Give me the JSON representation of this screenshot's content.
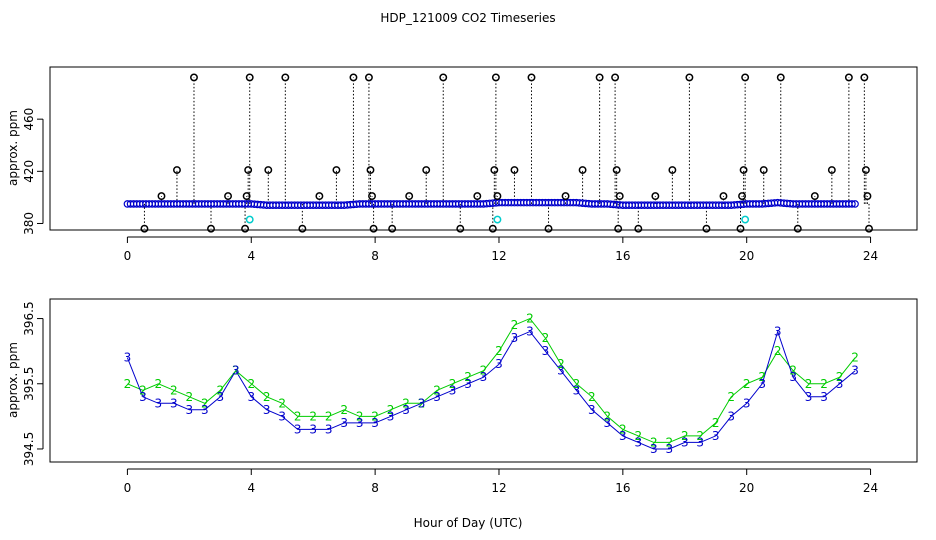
{
  "figure": {
    "title": "HDP_121009  CO2 Timeseries",
    "xlabel": "Hour of Day (UTC)"
  },
  "chart_data": [
    {
      "type": "scatter",
      "ylabel": "approx. ppm",
      "xlim": [
        -2.5,
        25.5
      ],
      "ylim": [
        375,
        500
      ],
      "xticks": [
        0,
        4,
        8,
        12,
        16,
        20,
        24
      ],
      "yticks": [
        380,
        420,
        460
      ],
      "grid": false,
      "colors": {
        "series1": "#0000cc",
        "outliers": "#000000",
        "calibration": "#00cccc",
        "dropline": "#000000"
      },
      "series": [
        {
          "values": [
            {
              "x": 0.0,
              "y": 395
            },
            {
              "x": 0.5,
              "y": 395
            },
            {
              "x": 1.0,
              "y": 395
            },
            {
              "x": 1.5,
              "y": 395
            },
            {
              "x": 2.0,
              "y": 395
            },
            {
              "x": 2.5,
              "y": 395
            },
            {
              "x": 3.0,
              "y": 395
            },
            {
              "x": 3.5,
              "y": 395
            },
            {
              "x": 4.0,
              "y": 395
            },
            {
              "x": 4.5,
              "y": 394
            },
            {
              "x": 5.0,
              "y": 394
            },
            {
              "x": 5.5,
              "y": 394
            },
            {
              "x": 6.0,
              "y": 394
            },
            {
              "x": 6.5,
              "y": 394
            },
            {
              "x": 7.0,
              "y": 394
            },
            {
              "x": 7.5,
              "y": 395
            },
            {
              "x": 8.0,
              "y": 395
            },
            {
              "x": 8.5,
              "y": 395
            },
            {
              "x": 9.0,
              "y": 395
            },
            {
              "x": 9.5,
              "y": 395
            },
            {
              "x": 10.0,
              "y": 395
            },
            {
              "x": 10.5,
              "y": 395
            },
            {
              "x": 11.0,
              "y": 395
            },
            {
              "x": 11.5,
              "y": 395
            },
            {
              "x": 12.0,
              "y": 396
            },
            {
              "x": 12.5,
              "y": 396
            },
            {
              "x": 13.0,
              "y": 396
            },
            {
              "x": 13.5,
              "y": 396
            },
            {
              "x": 14.0,
              "y": 396
            },
            {
              "x": 14.5,
              "y": 396
            },
            {
              "x": 15.0,
              "y": 395
            },
            {
              "x": 15.5,
              "y": 395
            },
            {
              "x": 16.0,
              "y": 394
            },
            {
              "x": 16.5,
              "y": 394
            },
            {
              "x": 17.0,
              "y": 394
            },
            {
              "x": 17.5,
              "y": 394
            },
            {
              "x": 18.0,
              "y": 394
            },
            {
              "x": 18.5,
              "y": 394
            },
            {
              "x": 19.0,
              "y": 394
            },
            {
              "x": 19.5,
              "y": 394
            },
            {
              "x": 20.0,
              "y": 395
            },
            {
              "x": 20.5,
              "y": 395
            },
            {
              "x": 21.0,
              "y": 396
            },
            {
              "x": 21.5,
              "y": 395
            },
            {
              "x": 22.0,
              "y": 395
            },
            {
              "x": 22.5,
              "y": 395
            },
            {
              "x": 23.0,
              "y": 395
            },
            {
              "x": 23.5,
              "y": 395
            }
          ]
        },
        {
          "outliers": [
            {
              "x": 0.55,
              "y": 376
            },
            {
              "x": 1.1,
              "y": 401
            },
            {
              "x": 1.6,
              "y": 421
            },
            {
              "x": 2.15,
              "y": 492
            },
            {
              "x": 2.7,
              "y": 376
            },
            {
              "x": 3.25,
              "y": 401
            },
            {
              "x": 3.8,
              "y": 376
            },
            {
              "x": 3.85,
              "y": 401
            },
            {
              "x": 3.9,
              "y": 421
            },
            {
              "x": 3.95,
              "y": 492
            },
            {
              "x": 4.55,
              "y": 421
            },
            {
              "x": 5.1,
              "y": 492
            },
            {
              "x": 5.65,
              "y": 376
            },
            {
              "x": 6.2,
              "y": 401
            },
            {
              "x": 6.75,
              "y": 421
            },
            {
              "x": 7.3,
              "y": 492
            },
            {
              "x": 7.8,
              "y": 492
            },
            {
              "x": 7.85,
              "y": 421
            },
            {
              "x": 7.9,
              "y": 401
            },
            {
              "x": 7.95,
              "y": 376
            },
            {
              "x": 8.55,
              "y": 376
            },
            {
              "x": 9.1,
              "y": 401
            },
            {
              "x": 9.65,
              "y": 421
            },
            {
              "x": 10.2,
              "y": 492
            },
            {
              "x": 10.75,
              "y": 376
            },
            {
              "x": 11.3,
              "y": 401
            },
            {
              "x": 11.8,
              "y": 376
            },
            {
              "x": 11.85,
              "y": 421
            },
            {
              "x": 11.9,
              "y": 492
            },
            {
              "x": 11.95,
              "y": 401
            },
            {
              "x": 12.5,
              "y": 421
            },
            {
              "x": 13.05,
              "y": 492
            },
            {
              "x": 13.6,
              "y": 376
            },
            {
              "x": 14.15,
              "y": 401
            },
            {
              "x": 14.7,
              "y": 421
            },
            {
              "x": 15.25,
              "y": 492
            },
            {
              "x": 15.75,
              "y": 492
            },
            {
              "x": 15.8,
              "y": 421
            },
            {
              "x": 15.85,
              "y": 376
            },
            {
              "x": 15.9,
              "y": 401
            },
            {
              "x": 16.5,
              "y": 376
            },
            {
              "x": 17.05,
              "y": 401
            },
            {
              "x": 17.6,
              "y": 421
            },
            {
              "x": 18.15,
              "y": 492
            },
            {
              "x": 18.7,
              "y": 376
            },
            {
              "x": 19.25,
              "y": 401
            },
            {
              "x": 19.8,
              "y": 376
            },
            {
              "x": 19.85,
              "y": 401
            },
            {
              "x": 19.9,
              "y": 421
            },
            {
              "x": 19.95,
              "y": 492
            },
            {
              "x": 20.55,
              "y": 421
            },
            {
              "x": 21.1,
              "y": 492
            },
            {
              "x": 21.65,
              "y": 376
            },
            {
              "x": 22.2,
              "y": 401
            },
            {
              "x": 22.75,
              "y": 421
            },
            {
              "x": 23.3,
              "y": 492
            },
            {
              "x": 23.8,
              "y": 492
            },
            {
              "x": 23.85,
              "y": 421
            },
            {
              "x": 23.9,
              "y": 401
            },
            {
              "x": 23.95,
              "y": 376
            }
          ]
        },
        {
          "calibration": [
            {
              "x": 3.95,
              "y": 383
            },
            {
              "x": 11.95,
              "y": 383
            },
            {
              "x": 19.95,
              "y": 383
            }
          ]
        }
      ]
    },
    {
      "type": "line",
      "ylabel": "approx. ppm",
      "xlim": [
        -2.5,
        25.5
      ],
      "ylim": [
        394.3,
        396.8
      ],
      "xticks": [
        0,
        4,
        8,
        12,
        16,
        20,
        24
      ],
      "yticks": [
        394.5,
        395.5,
        396.5
      ],
      "grid": false,
      "colors": {
        "series2": "#00cc00",
        "series3": "#0000cc"
      },
      "series": [
        {
          "symbol": "2",
          "values": [
            {
              "x": 0.0,
              "y": 395.5
            },
            {
              "x": 0.5,
              "y": 395.4
            },
            {
              "x": 1.0,
              "y": 395.5
            },
            {
              "x": 1.5,
              "y": 395.4
            },
            {
              "x": 2.0,
              "y": 395.3
            },
            {
              "x": 2.5,
              "y": 395.2
            },
            {
              "x": 3.0,
              "y": 395.4
            },
            {
              "x": 3.5,
              "y": 395.7
            },
            {
              "x": 4.0,
              "y": 395.5
            },
            {
              "x": 4.5,
              "y": 395.3
            },
            {
              "x": 5.0,
              "y": 395.2
            },
            {
              "x": 5.5,
              "y": 395.0
            },
            {
              "x": 6.0,
              "y": 395.0
            },
            {
              "x": 6.5,
              "y": 395.0
            },
            {
              "x": 7.0,
              "y": 395.1
            },
            {
              "x": 7.5,
              "y": 395.0
            },
            {
              "x": 8.0,
              "y": 395.0
            },
            {
              "x": 8.5,
              "y": 395.1
            },
            {
              "x": 9.0,
              "y": 395.2
            },
            {
              "x": 9.5,
              "y": 395.2
            },
            {
              "x": 10.0,
              "y": 395.4
            },
            {
              "x": 10.5,
              "y": 395.5
            },
            {
              "x": 11.0,
              "y": 395.6
            },
            {
              "x": 11.5,
              "y": 395.7
            },
            {
              "x": 12.0,
              "y": 396.0
            },
            {
              "x": 12.5,
              "y": 396.4
            },
            {
              "x": 13.0,
              "y": 396.5
            },
            {
              "x": 13.5,
              "y": 396.2
            },
            {
              "x": 14.0,
              "y": 395.8
            },
            {
              "x": 14.5,
              "y": 395.5
            },
            {
              "x": 15.0,
              "y": 395.3
            },
            {
              "x": 15.5,
              "y": 395.0
            },
            {
              "x": 16.0,
              "y": 394.8
            },
            {
              "x": 16.5,
              "y": 394.7
            },
            {
              "x": 17.0,
              "y": 394.6
            },
            {
              "x": 17.5,
              "y": 394.6
            },
            {
              "x": 18.0,
              "y": 394.7
            },
            {
              "x": 18.5,
              "y": 394.7
            },
            {
              "x": 19.0,
              "y": 394.9
            },
            {
              "x": 19.5,
              "y": 395.3
            },
            {
              "x": 20.0,
              "y": 395.5
            },
            {
              "x": 20.5,
              "y": 395.6
            },
            {
              "x": 21.0,
              "y": 396.0
            },
            {
              "x": 21.5,
              "y": 395.7
            },
            {
              "x": 22.0,
              "y": 395.5
            },
            {
              "x": 22.5,
              "y": 395.5
            },
            {
              "x": 23.0,
              "y": 395.6
            },
            {
              "x": 23.5,
              "y": 395.9
            }
          ]
        },
        {
          "symbol": "3",
          "values": [
            {
              "x": 0.0,
              "y": 395.9
            },
            {
              "x": 0.5,
              "y": 395.3
            },
            {
              "x": 1.0,
              "y": 395.2
            },
            {
              "x": 1.5,
              "y": 395.2
            },
            {
              "x": 2.0,
              "y": 395.1
            },
            {
              "x": 2.5,
              "y": 395.1
            },
            {
              "x": 3.0,
              "y": 395.3
            },
            {
              "x": 3.5,
              "y": 395.7
            },
            {
              "x": 4.0,
              "y": 395.3
            },
            {
              "x": 4.5,
              "y": 395.1
            },
            {
              "x": 5.0,
              "y": 395.0
            },
            {
              "x": 5.5,
              "y": 394.8
            },
            {
              "x": 6.0,
              "y": 394.8
            },
            {
              "x": 6.5,
              "y": 394.8
            },
            {
              "x": 7.0,
              "y": 394.9
            },
            {
              "x": 7.5,
              "y": 394.9
            },
            {
              "x": 8.0,
              "y": 394.9
            },
            {
              "x": 8.5,
              "y": 395.0
            },
            {
              "x": 9.0,
              "y": 395.1
            },
            {
              "x": 9.5,
              "y": 395.2
            },
            {
              "x": 10.0,
              "y": 395.3
            },
            {
              "x": 10.5,
              "y": 395.4
            },
            {
              "x": 11.0,
              "y": 395.5
            },
            {
              "x": 11.5,
              "y": 395.6
            },
            {
              "x": 12.0,
              "y": 395.8
            },
            {
              "x": 12.5,
              "y": 396.2
            },
            {
              "x": 13.0,
              "y": 396.3
            },
            {
              "x": 13.5,
              "y": 396.0
            },
            {
              "x": 14.0,
              "y": 395.7
            },
            {
              "x": 14.5,
              "y": 395.4
            },
            {
              "x": 15.0,
              "y": 395.1
            },
            {
              "x": 15.5,
              "y": 394.9
            },
            {
              "x": 16.0,
              "y": 394.7
            },
            {
              "x": 16.5,
              "y": 394.6
            },
            {
              "x": 17.0,
              "y": 394.5
            },
            {
              "x": 17.5,
              "y": 394.5
            },
            {
              "x": 18.0,
              "y": 394.6
            },
            {
              "x": 18.5,
              "y": 394.6
            },
            {
              "x": 19.0,
              "y": 394.7
            },
            {
              "x": 19.5,
              "y": 395.0
            },
            {
              "x": 20.0,
              "y": 395.2
            },
            {
              "x": 20.5,
              "y": 395.5
            },
            {
              "x": 21.0,
              "y": 396.3
            },
            {
              "x": 21.5,
              "y": 395.6
            },
            {
              "x": 22.0,
              "y": 395.3
            },
            {
              "x": 22.5,
              "y": 395.3
            },
            {
              "x": 23.0,
              "y": 395.5
            },
            {
              "x": 23.5,
              "y": 395.7
            }
          ]
        }
      ]
    }
  ]
}
